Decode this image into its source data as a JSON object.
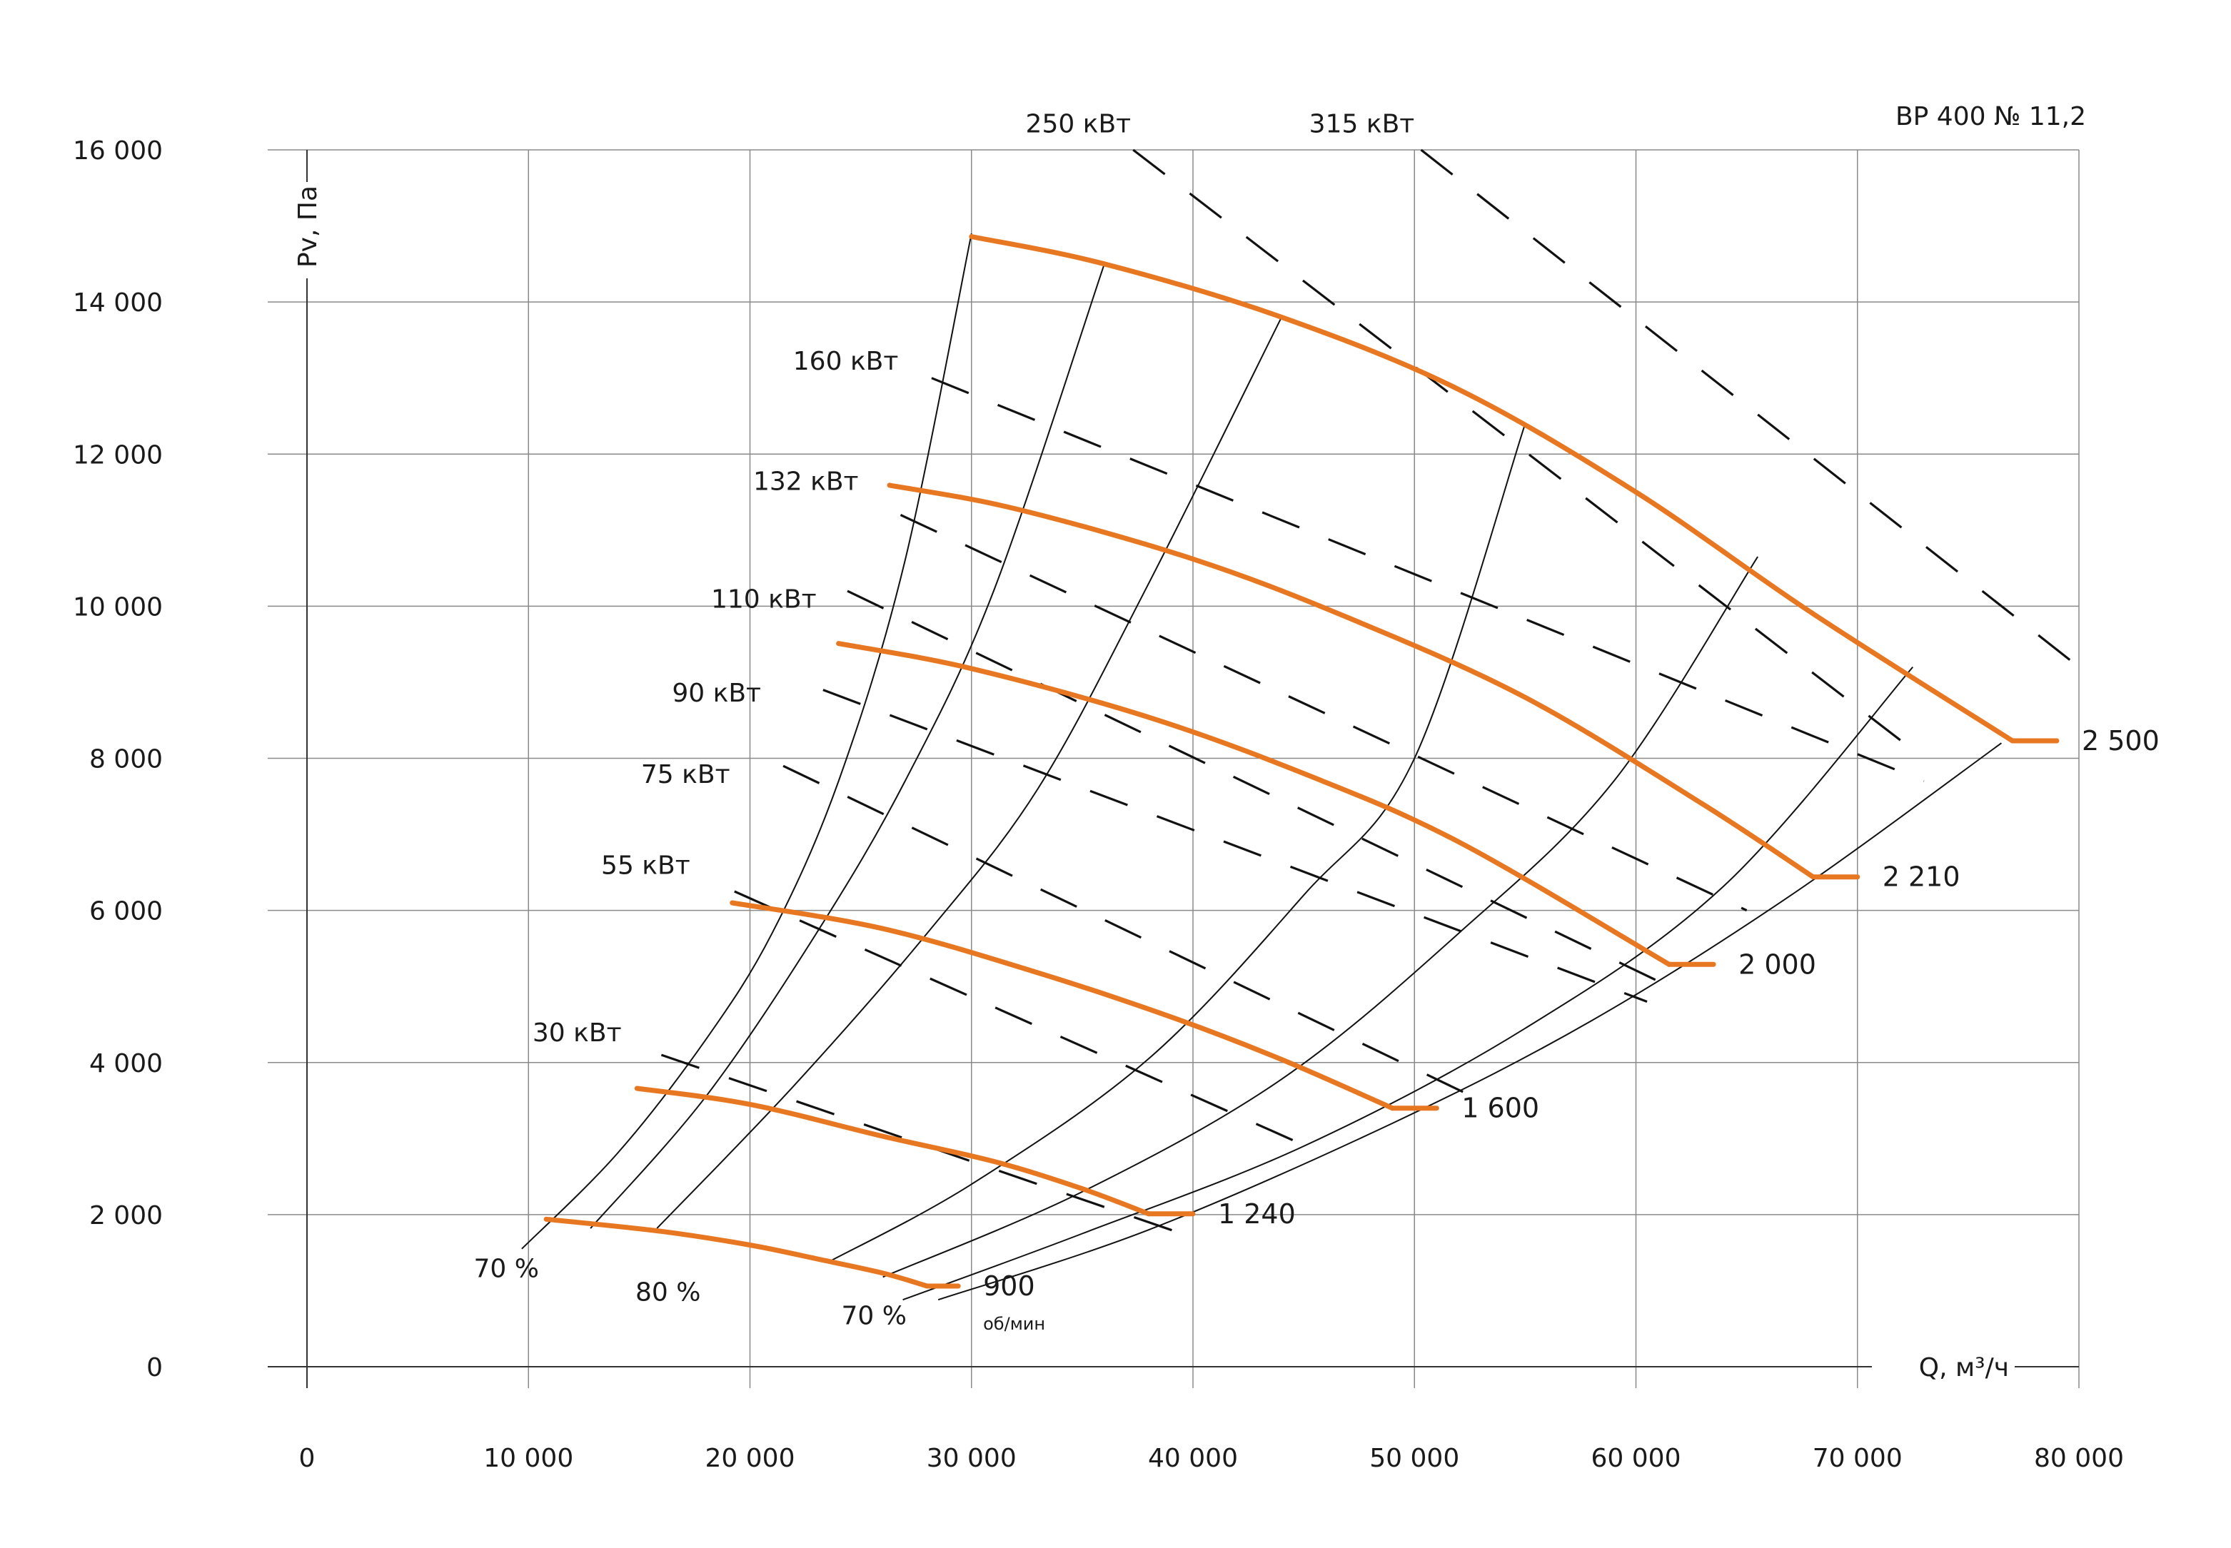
{
  "chart_data": {
    "type": "line",
    "title": "ВР 400 № 11,2",
    "xlabel": "Q, м³/ч",
    "ylabel": "Pv, Па",
    "xlim": [
      0,
      80000
    ],
    "ylim": [
      0,
      16000
    ],
    "x_ticks": [
      0,
      10000,
      20000,
      30000,
      40000,
      50000,
      60000,
      70000,
      80000
    ],
    "x_tick_labels": [
      "0",
      "10 000",
      "20 000",
      "30 000",
      "40 000",
      "50 000",
      "60 000",
      "70 000",
      "80 000"
    ],
    "y_ticks": [
      0,
      2000,
      4000,
      6000,
      8000,
      10000,
      12000,
      14000,
      16000
    ],
    "y_tick_labels": [
      "0",
      "2 000",
      "4 000",
      "6 000",
      "8 000",
      "10 000",
      "12 000",
      "14 000",
      "16 000"
    ],
    "grid": true,
    "curve_color": "#E87722",
    "speed_unit": "об/мин",
    "speed_curves": [
      {
        "label": "900",
        "points": [
          [
            10800,
            1940
          ],
          [
            16000,
            1780
          ],
          [
            20000,
            1600
          ],
          [
            23000,
            1420
          ],
          [
            26000,
            1230
          ],
          [
            28000,
            1060
          ]
        ],
        "end_x": 29400
      },
      {
        "label": "1 240",
        "points": [
          [
            14900,
            3660
          ],
          [
            20000,
            3450
          ],
          [
            26000,
            3030
          ],
          [
            31000,
            2700
          ],
          [
            35000,
            2340
          ],
          [
            38000,
            2010
          ]
        ],
        "end_x": 40000
      },
      {
        "label": "1 600",
        "points": [
          [
            19200,
            6100
          ],
          [
            26000,
            5760
          ],
          [
            33000,
            5180
          ],
          [
            39000,
            4600
          ],
          [
            44000,
            4040
          ],
          [
            49000,
            3400
          ]
        ],
        "end_x": 51000
      },
      {
        "label": "2 000",
        "points": [
          [
            24000,
            9510
          ],
          [
            30000,
            9180
          ],
          [
            38000,
            8540
          ],
          [
            45000,
            7800
          ],
          [
            52000,
            6900
          ],
          [
            61500,
            5290
          ]
        ],
        "end_x": 63500
      },
      {
        "label": "2 210",
        "points": [
          [
            26300,
            11590
          ],
          [
            32000,
            11280
          ],
          [
            40000,
            10620
          ],
          [
            47000,
            9850
          ],
          [
            55000,
            8800
          ],
          [
            63000,
            7400
          ],
          [
            68000,
            6440
          ]
        ],
        "end_x": 70000
      },
      {
        "label": "2 500",
        "points": [
          [
            30000,
            14860
          ],
          [
            36000,
            14500
          ],
          [
            44000,
            13800
          ],
          [
            52000,
            12850
          ],
          [
            60000,
            11500
          ],
          [
            68000,
            9900
          ],
          [
            77000,
            8230
          ]
        ],
        "end_x": 79000
      }
    ],
    "efficiency_lines": [
      {
        "points": [
          [
            9700,
            1550
          ],
          [
            14000,
            2800
          ],
          [
            18000,
            4300
          ],
          [
            21000,
            5700
          ],
          [
            24000,
            7700
          ],
          [
            27000,
            10600
          ],
          [
            30000,
            14900
          ]
        ]
      },
      {
        "points": [
          [
            12800,
            1820
          ],
          [
            18000,
            3550
          ],
          [
            23000,
            5700
          ],
          [
            27000,
            7700
          ],
          [
            31000,
            10200
          ],
          [
            36000,
            14500
          ]
        ]
      },
      {
        "points": [
          [
            15800,
            1820
          ],
          [
            22000,
            3700
          ],
          [
            28000,
            5700
          ],
          [
            33000,
            7600
          ],
          [
            38000,
            10300
          ],
          [
            44000,
            13800
          ]
        ]
      },
      {
        "points": [
          [
            23500,
            1370
          ],
          [
            30000,
            2400
          ],
          [
            38000,
            4050
          ],
          [
            45000,
            6200
          ],
          [
            50000,
            8000
          ],
          [
            55000,
            12400
          ]
        ]
      },
      {
        "points": [
          [
            26000,
            1180
          ],
          [
            35000,
            2300
          ],
          [
            44000,
            3780
          ],
          [
            52000,
            5700
          ],
          [
            59000,
            7700
          ],
          [
            65500,
            10650
          ]
        ]
      },
      {
        "points": [
          [
            26900,
            880
          ],
          [
            35000,
            1750
          ],
          [
            45000,
            2900
          ],
          [
            55000,
            4450
          ],
          [
            64000,
            6330
          ],
          [
            72500,
            9200
          ]
        ]
      },
      {
        "points": [
          [
            28500,
            880
          ],
          [
            38000,
            1800
          ],
          [
            49000,
            3200
          ],
          [
            58000,
            4550
          ],
          [
            67000,
            6200
          ],
          [
            76500,
            8200
          ]
        ]
      }
    ],
    "efficiency_labels": [
      {
        "text": "70 %",
        "x": 9000,
        "y": 1180
      },
      {
        "text": "80 %",
        "x": 16300,
        "y": 870
      },
      {
        "text": "70 %",
        "x": 25600,
        "y": 560
      }
    ],
    "power_lines": [
      {
        "label": "30 кВт",
        "points": [
          [
            16000,
            4100
          ],
          [
            40000,
            1700
          ]
        ],
        "label_at": [
          14200,
          4400
        ]
      },
      {
        "label": "55 кВт",
        "points": [
          [
            19300,
            6250
          ],
          [
            45500,
            2850
          ]
        ],
        "label_at": [
          17300,
          6600
        ]
      },
      {
        "label": "75 кВт",
        "points": [
          [
            21500,
            7900
          ],
          [
            53000,
            3500
          ]
        ],
        "label_at": [
          19100,
          7800
        ]
      },
      {
        "label": "90 кВт",
        "points": [
          [
            23300,
            8900
          ],
          [
            60500,
            4800
          ]
        ],
        "label_at": [
          20500,
          8870
        ]
      },
      {
        "label": "110 кВт",
        "points": [
          [
            24400,
            10200
          ],
          [
            61500,
            5000
          ]
        ],
        "label_at": [
          23000,
          10100
        ]
      },
      {
        "label": "132 кВт",
        "points": [
          [
            26800,
            11200
          ],
          [
            65000,
            6000
          ]
        ],
        "label_at": [
          24900,
          11650
        ]
      },
      {
        "label": "160 кВт",
        "points": [
          [
            28200,
            13000
          ],
          [
            73000,
            7700
          ]
        ],
        "label_at": [
          26700,
          13230
        ]
      },
      {
        "label": "250 кВт",
        "points": [
          [
            37300,
            16000
          ],
          [
            73000,
            8000
          ]
        ],
        "label_at": [
          37200,
          16350
        ]
      },
      {
        "label": "315 кВт",
        "points": [
          [
            50300,
            16000
          ],
          [
            80000,
            9200
          ]
        ],
        "label_at": [
          50000,
          16350
        ]
      }
    ]
  }
}
